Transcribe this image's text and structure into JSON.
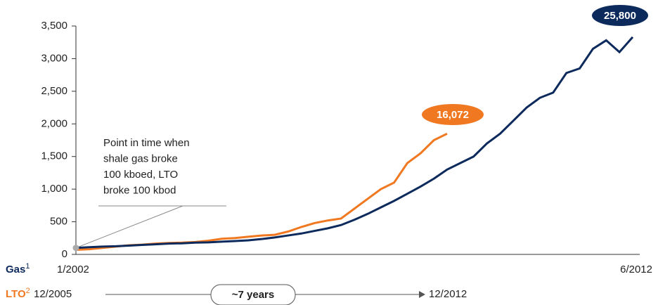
{
  "chart_data": {
    "type": "line",
    "ylim": [
      0,
      3500
    ],
    "yticks": [
      0,
      500,
      {
        "value": 1000,
        "label": "1,000"
      },
      {
        "value": 1500,
        "label": "1,500"
      },
      {
        "value": 2000,
        "label": "2,000"
      },
      {
        "value": 2500,
        "label": "2,500"
      },
      {
        "value": 3000,
        "label": "3,000"
      },
      {
        "value": 3500,
        "label": "3,500"
      }
    ],
    "series": [
      {
        "name": "Gas",
        "footnote": "1",
        "color": "#0d2a5c",
        "start": "1/2002",
        "end": "6/2012",
        "end_label": "25,800",
        "values": [
          100,
          110,
          120,
          125,
          135,
          145,
          155,
          165,
          170,
          180,
          185,
          195,
          205,
          215,
          235,
          260,
          290,
          320,
          360,
          400,
          450,
          530,
          620,
          720,
          820,
          930,
          1040,
          1160,
          1300,
          1400,
          1500,
          1700,
          1850,
          2050,
          2250,
          2400,
          2480,
          2780,
          2850,
          3150,
          3280,
          3100,
          3330
        ]
      },
      {
        "name": "LTO",
        "footnote": "2",
        "color": "#f07820",
        "start": "12/2005",
        "end": "12/2012",
        "end_label": "16,072",
        "values": [
          70,
          80,
          100,
          120,
          140,
          150,
          165,
          175,
          180,
          190,
          210,
          240,
          250,
          270,
          290,
          300,
          350,
          420,
          480,
          520,
          550,
          700,
          850,
          1000,
          1100,
          1400,
          1550,
          1750,
          1850
        ]
      }
    ],
    "span_label": "~7 years",
    "annotation": [
      "Point in time when",
      "shale gas broke",
      "100 kboed, LTO",
      "broke 100 kbod"
    ]
  }
}
